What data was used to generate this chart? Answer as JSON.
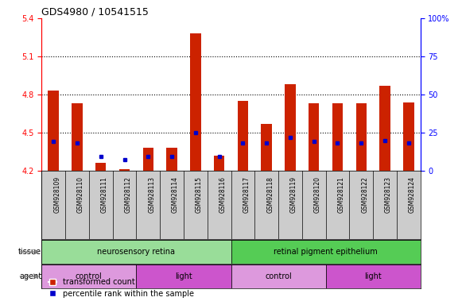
{
  "title": "GDS4980 / 10541515",
  "samples": [
    "GSM928109",
    "GSM928110",
    "GSM928111",
    "GSM928112",
    "GSM928113",
    "GSM928114",
    "GSM928115",
    "GSM928116",
    "GSM928117",
    "GSM928118",
    "GSM928119",
    "GSM928120",
    "GSM928121",
    "GSM928122",
    "GSM928123",
    "GSM928124"
  ],
  "red_values": [
    4.83,
    4.73,
    4.26,
    4.21,
    4.38,
    4.38,
    5.28,
    4.32,
    4.75,
    4.57,
    4.88,
    4.73,
    4.73,
    4.73,
    4.87,
    4.74
  ],
  "blue_values": [
    4.43,
    4.42,
    4.31,
    4.29,
    4.31,
    4.31,
    4.5,
    4.31,
    4.42,
    4.42,
    4.46,
    4.43,
    4.42,
    4.42,
    4.44,
    4.42
  ],
  "ymin": 4.2,
  "ymax": 5.4,
  "yticks_left": [
    4.2,
    4.5,
    4.8,
    5.1,
    5.4
  ],
  "yticks_right": [
    0,
    25,
    50,
    75,
    100
  ],
  "grid_lines": [
    4.5,
    4.8,
    5.1
  ],
  "tissue_labels": [
    {
      "text": "neurosensory retina",
      "start": 0,
      "end": 7,
      "color": "#99dd99"
    },
    {
      "text": "retinal pigment epithelium",
      "start": 8,
      "end": 15,
      "color": "#55cc55"
    }
  ],
  "agent_labels": [
    {
      "text": "control",
      "start": 0,
      "end": 3,
      "color": "#dd99dd"
    },
    {
      "text": "light",
      "start": 4,
      "end": 7,
      "color": "#cc55cc"
    },
    {
      "text": "control",
      "start": 8,
      "end": 11,
      "color": "#dd99dd"
    },
    {
      "text": "light",
      "start": 12,
      "end": 15,
      "color": "#cc55cc"
    }
  ],
  "bar_color": "#cc2200",
  "dot_color": "#0000cc",
  "bar_width": 0.45,
  "legend_labels": [
    "transformed count",
    "percentile rank within the sample"
  ],
  "legend_colors": [
    "#cc2200",
    "#0000cc"
  ],
  "xticklabel_bg": "#cccccc",
  "left_label_color": "#555555"
}
